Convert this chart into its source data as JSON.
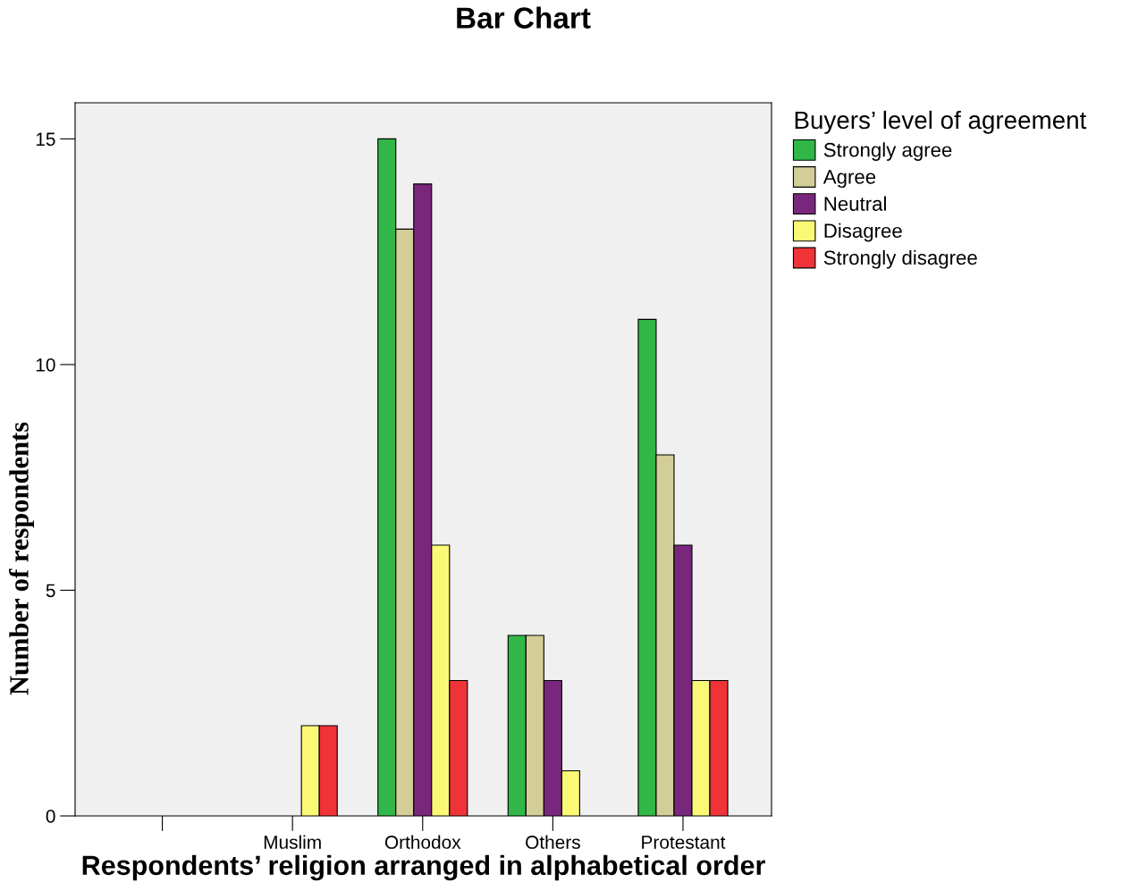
{
  "chart_data": {
    "type": "bar",
    "title": "Bar Chart",
    "xlabel": "Respondents’ religion arranged in alphabetical order",
    "ylabel": "Number of respondents",
    "legend_title": "Buyers’ level of agreement",
    "legend": "top right",
    "categories": [
      null,
      "Muslim",
      "Orthodox",
      "Others",
      "Protestant"
    ],
    "series": [
      {
        "name": "Strongly agree",
        "color": "#31b648",
        "values": [
          null,
          null,
          15,
          4,
          11
        ]
      },
      {
        "name": "Agree",
        "color": "#d3ce97",
        "values": [
          null,
          null,
          13,
          4,
          8
        ]
      },
      {
        "name": "Neutral",
        "color": "#79277c",
        "values": [
          null,
          null,
          14,
          3,
          6
        ]
      },
      {
        "name": "Disagree",
        "color": "#fbf876",
        "values": [
          null,
          2,
          6,
          1,
          3
        ]
      },
      {
        "name": "Strongly disagree",
        "color": "#ef3337",
        "values": [
          null,
          2,
          3,
          null,
          3
        ]
      }
    ],
    "ylim": [
      0,
      15.8
    ],
    "yticks": [
      0,
      5,
      10,
      15
    ],
    "grid": false
  }
}
